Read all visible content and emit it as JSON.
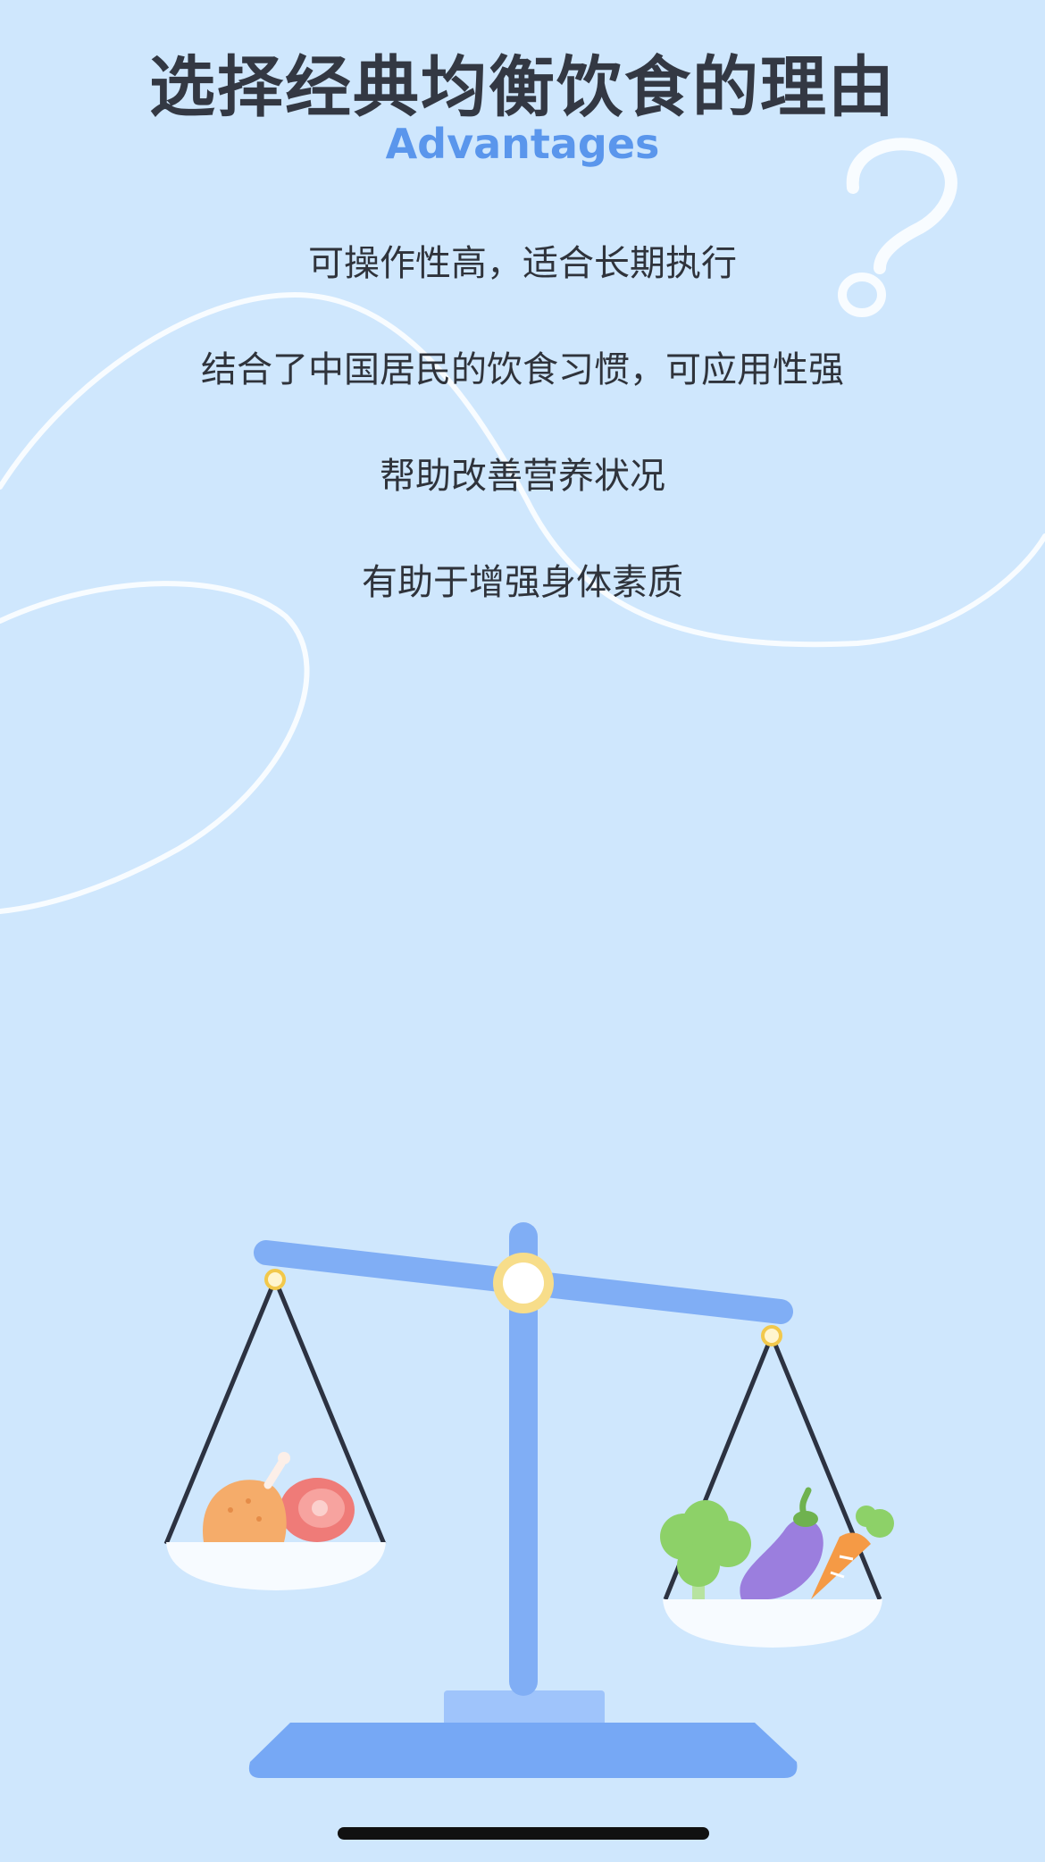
{
  "header": {
    "title": "选择经典均衡饮食的理由",
    "subtitle": "Advantages"
  },
  "reasons": [
    "可操作性高，适合长期执行",
    "结合了中国居民的饮食习惯，可应用性强",
    "帮助改善营养状况",
    "有助于增强身体素质"
  ],
  "illustration": {
    "name": "balance-scale-illustration",
    "left_pan": "meat",
    "right_pan": "vegetables"
  },
  "colors": {
    "background": "#cfe7fd",
    "accent": "#5a96ec",
    "scale_blue": "#80aef5",
    "title_text": "#333843"
  }
}
